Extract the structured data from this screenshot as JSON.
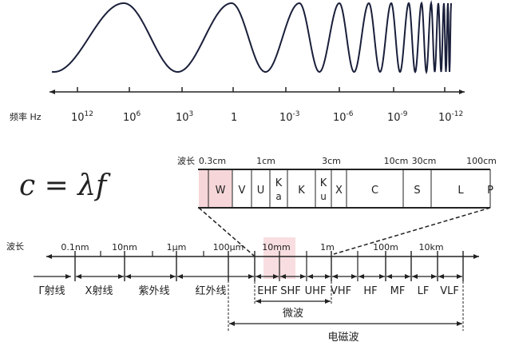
{
  "frequency_axis": {
    "label": "频率 Hz",
    "ticks": [
      {
        "base": "10",
        "exp": "12"
      },
      {
        "base": "10",
        "exp": "6"
      },
      {
        "base": "10",
        "exp": "3"
      },
      {
        "base": "1",
        "exp": ""
      },
      {
        "base": "10",
        "exp": "-3"
      },
      {
        "base": "10",
        "exp": "-6"
      },
      {
        "base": "10",
        "exp": "-9"
      },
      {
        "base": "10",
        "exp": "-12"
      }
    ]
  },
  "formula": "c = λf",
  "band_detail": {
    "label": "波长",
    "ticks": [
      "0.3cm",
      "1cm",
      "3cm",
      "10cm",
      "30cm",
      "100cm"
    ],
    "bands": [
      {
        "name": "",
        "highlight": true
      },
      {
        "name": "W",
        "highlight": true
      },
      {
        "name": "V"
      },
      {
        "name": "U"
      },
      {
        "name": "K",
        "sub": "a"
      },
      {
        "name": "K"
      },
      {
        "name": "K",
        "sub": "u"
      },
      {
        "name": "X"
      },
      {
        "name": "C"
      },
      {
        "name": "S"
      },
      {
        "name": "L"
      },
      {
        "name": "P"
      }
    ],
    "highlight_color": "#f6d6d8"
  },
  "wavelength_axis": {
    "label": "波长",
    "ticks": [
      "0.1nm",
      "10nm",
      "1μm",
      "100μm",
      "10mm",
      "1m",
      "100m",
      "10km"
    ],
    "regions": [
      "Γ射线",
      "X射线",
      "紫外线",
      "红外线",
      "EHF",
      "SHF",
      "UHF",
      "VHF",
      "HF",
      "MF",
      "LF",
      "VLF"
    ],
    "microwave_label": "微波",
    "em_wave_label": "电磁波"
  }
}
